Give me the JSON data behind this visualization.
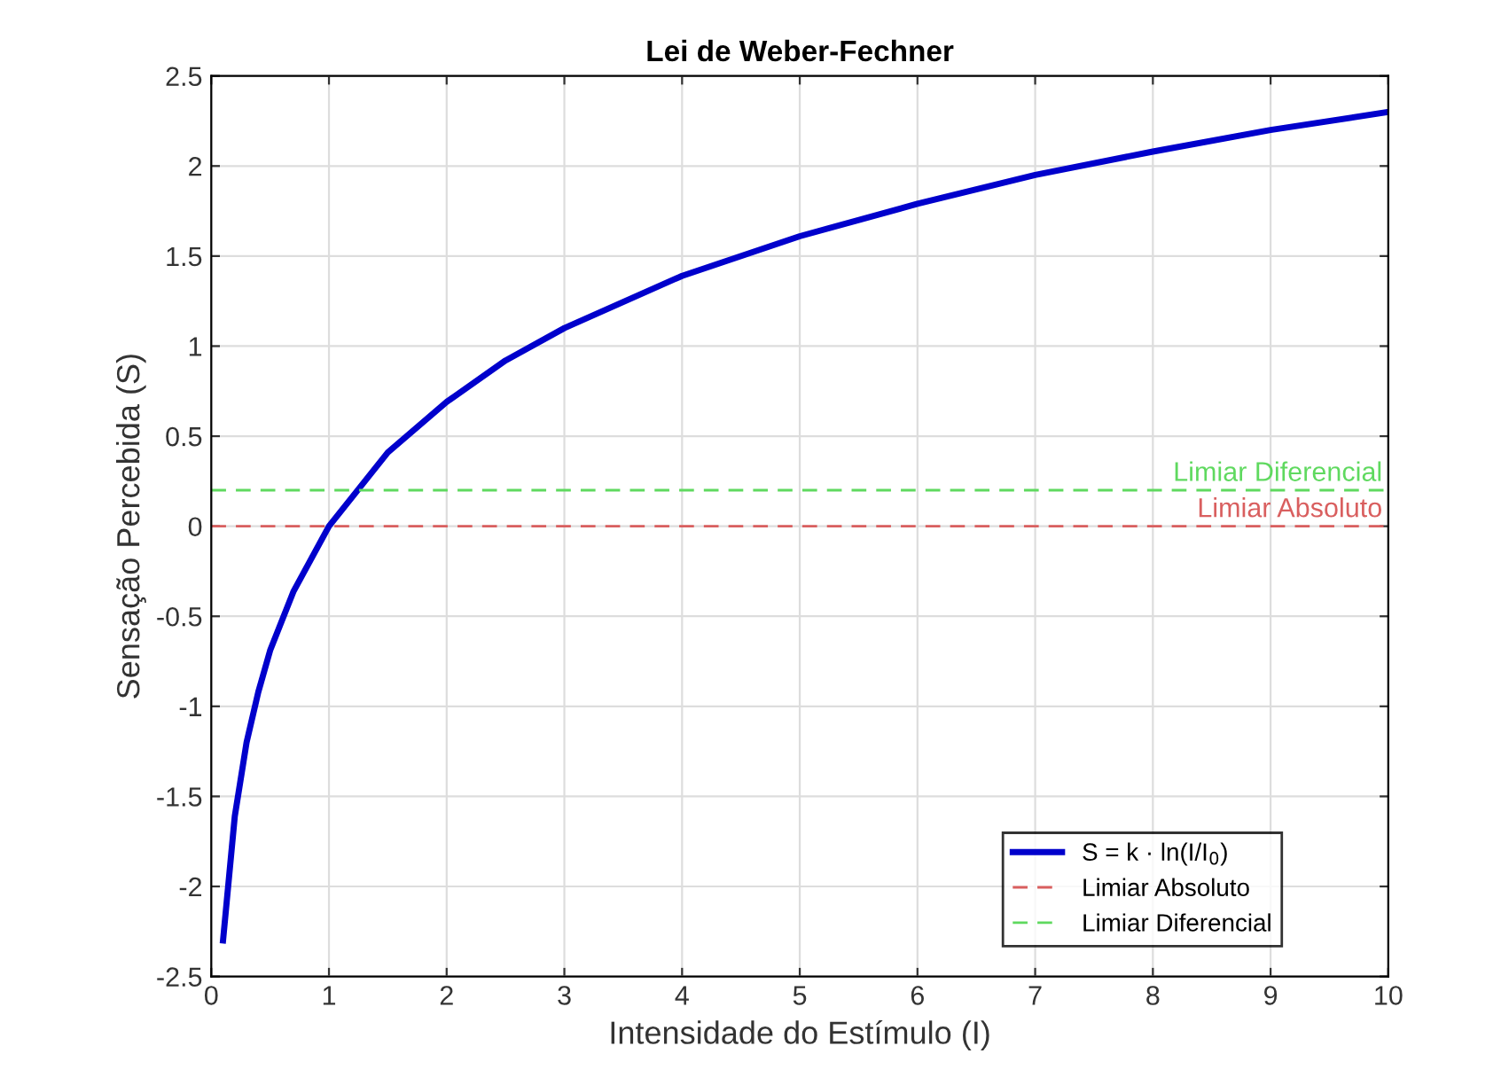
{
  "chart_data": {
    "type": "line",
    "title": "Lei de Weber-Fechner",
    "xlabel": "Intensidade do Estímulo (I)",
    "ylabel": "Sensação Percebida (S)",
    "x": [
      0.1,
      0.2,
      0.3,
      0.4,
      0.5,
      0.7,
      1,
      1.5,
      2,
      2.5,
      3,
      4,
      5,
      6,
      7,
      8,
      9,
      10
    ],
    "series": [
      {
        "name": "S = k · ln(I/I$_{0}$)",
        "color": "#0000cc",
        "values": [
          -2.3,
          -1.61,
          -1.2,
          -0.92,
          -0.69,
          -0.36,
          0,
          0.41,
          0.69,
          0.92,
          1.1,
          1.39,
          1.61,
          1.79,
          1.95,
          2.08,
          2.2,
          2.3
        ]
      }
    ],
    "ref_lines": [
      {
        "axis": "y",
        "value": 0,
        "label": "Limiar Absoluto",
        "color": "#d95f5f",
        "line_style": "dashed"
      },
      {
        "axis": "y",
        "value": 0.2,
        "label": "Limiar Diferencial",
        "color": "#5fd95f",
        "line_style": "dashed"
      }
    ],
    "xlim": [
      0,
      10
    ],
    "xticks": [
      0,
      1,
      2,
      3,
      4,
      5,
      6,
      7,
      8,
      9,
      10
    ],
    "ylim": [
      -2.5,
      2.5
    ],
    "yticks": [
      -2.5,
      -2,
      -1.5,
      -1,
      -0.5,
      0,
      0.5,
      1,
      1.5,
      2,
      2.5
    ],
    "grid": true,
    "legend": "bottom right",
    "line_style": "solid",
    "marker": "none"
  }
}
